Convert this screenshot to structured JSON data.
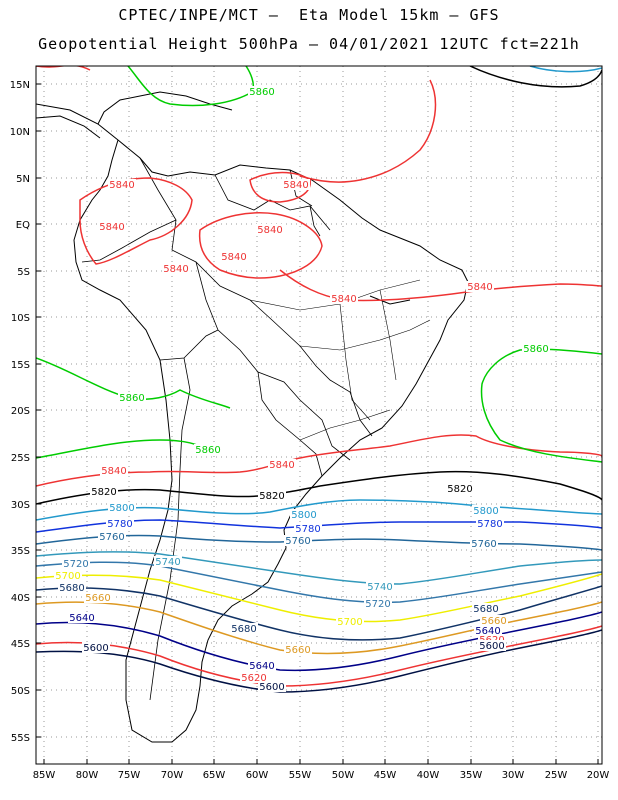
{
  "header": {
    "line1": "CPTEC/INPE/MCT —  Eta Model 15km — GFS",
    "line2": "Geopotential Height 500hPa — 04/01/2021 12UTC fct=221h"
  },
  "axes": {
    "lat_labels": [
      "15N",
      "10N",
      "5N",
      "EQ",
      "5S",
      "10S",
      "15S",
      "20S",
      "25S",
      "30S",
      "35S",
      "40S",
      "45S",
      "50S",
      "55S"
    ],
    "lon_labels": [
      "85W",
      "80W",
      "75W",
      "70W",
      "65W",
      "60W",
      "55W",
      "50W",
      "45W",
      "40W",
      "35W",
      "30W",
      "25W",
      "20W"
    ]
  },
  "contours": [
    {
      "level": "5860",
      "color": "#00cc00"
    },
    {
      "level": "5840",
      "color": "#ee3333"
    },
    {
      "level": "5820",
      "color": "#000000"
    },
    {
      "level": "5800",
      "color": "#2299cc"
    },
    {
      "level": "5780",
      "color": "#1133dd"
    },
    {
      "level": "5760",
      "color": "#226699"
    },
    {
      "level": "5740",
      "color": "#3399bb"
    },
    {
      "level": "5720",
      "color": "#3377aa"
    },
    {
      "level": "5700",
      "color": "#eeee00"
    },
    {
      "level": "5680",
      "color": "#113366"
    },
    {
      "level": "5660",
      "color": "#dd9922"
    },
    {
      "level": "5640",
      "color": "#000088"
    },
    {
      "level": "5620",
      "color": "#ee3333"
    },
    {
      "level": "5600",
      "color": "#001144"
    }
  ],
  "contour_labels": {
    "l5860a": "5860",
    "l5860b": "5860",
    "l5860c": "5860",
    "l5860d": "5860",
    "l5840a": "5840",
    "l5840b": "5840",
    "l5840c": "5840",
    "l5840d": "5840",
    "l5840e": "5840",
    "l5840f": "5840",
    "l5840g": "5840",
    "l5840h": "5840",
    "l5840i": "5840",
    "l5840j": "5840",
    "l5820a": "5820",
    "l5820b": "5820",
    "l5820c": "5820",
    "l5800a": "5800",
    "l5800b": "5800",
    "l5800c": "5800",
    "l5780a": "5780",
    "l5780b": "5780",
    "l5780c": "5780",
    "l5760a": "5760",
    "l5760b": "5760",
    "l5760c": "5760",
    "l5740a": "5740",
    "l5740b": "5740",
    "l5720a": "5720",
    "l5720b": "5720",
    "l5700a": "5700",
    "l5700b": "5700",
    "l5680a": "5680",
    "l5680b": "5680",
    "l5680c": "5680",
    "l5660a": "5660",
    "l5660b": "5660",
    "l5660c": "5660",
    "l5640a": "5640",
    "l5640b": "5640",
    "l5640c": "5640",
    "l5620a": "5620",
    "l5620b": "5620",
    "l5600a": "5600",
    "l5600b": "5600",
    "l5600c": "5600"
  }
}
